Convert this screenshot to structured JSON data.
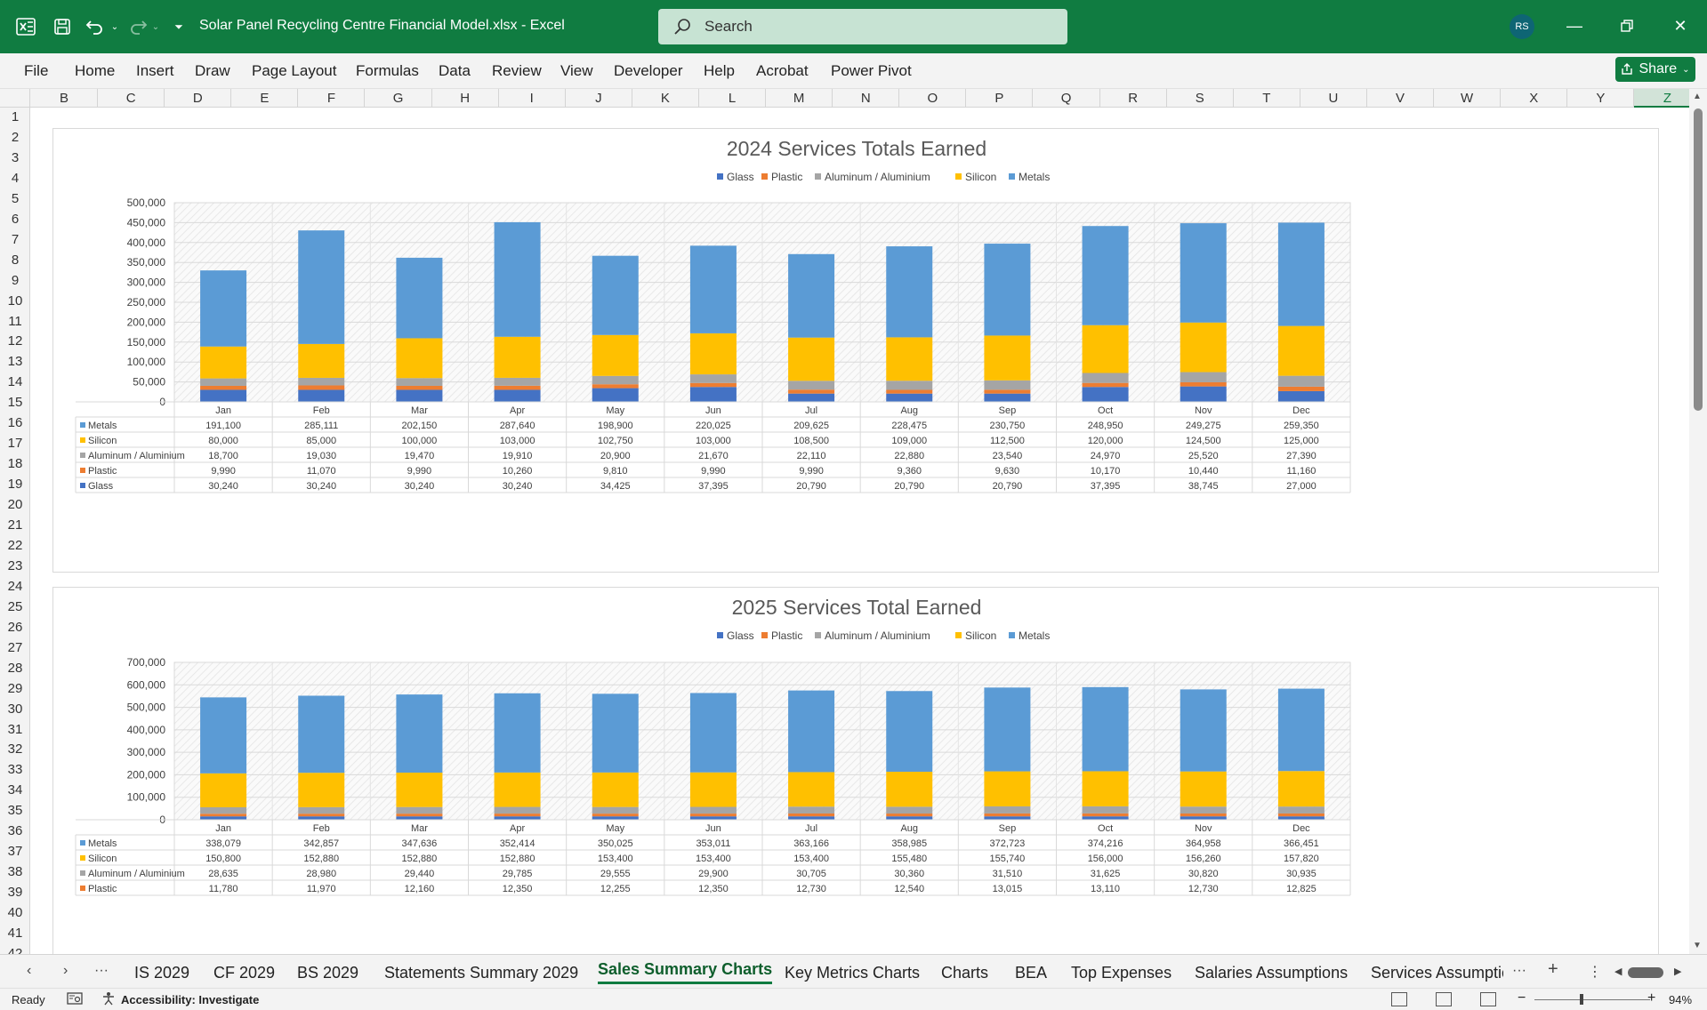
{
  "title_bar": {
    "doc_title": "Solar Panel Recycling Centre Financial Model.xlsx  -  Excel",
    "search_placeholder": "Search",
    "avatar_initials": "RS"
  },
  "ribbon": {
    "tabs": [
      "File",
      "Home",
      "Insert",
      "Draw",
      "Page Layout",
      "Formulas",
      "Data",
      "Review",
      "View",
      "Developer",
      "Help",
      "Acrobat",
      "Power Pivot"
    ],
    "share_label": "Share"
  },
  "column_headers": [
    "B",
    "C",
    "D",
    "E",
    "F",
    "G",
    "H",
    "I",
    "J",
    "K",
    "L",
    "M",
    "N",
    "O",
    "P",
    "Q",
    "R",
    "S",
    "T",
    "U",
    "V",
    "W",
    "X",
    "Y",
    "Z"
  ],
  "selected_column": "Z",
  "row_numbers": [
    "1",
    "2",
    "3",
    "4",
    "5",
    "6",
    "7",
    "8",
    "9",
    "10",
    "11",
    "12",
    "13",
    "14",
    "15",
    "16",
    "17",
    "18",
    "19",
    "20",
    "21",
    "22",
    "23",
    "24",
    "25",
    "26",
    "27",
    "28",
    "29",
    "30",
    "31",
    "32",
    "33",
    "34",
    "35",
    "36",
    "37",
    "38",
    "39",
    "40",
    "41",
    "42"
  ],
  "colors": {
    "Glass": "#4472c4",
    "Plastic": "#ed7d31",
    "Aluminum / Aluminium": "#a5a5a5",
    "Silicon": "#ffc000",
    "Metals": "#5b9bd5",
    "excel_green": "#107c41"
  },
  "chart_data": [
    {
      "type": "bar",
      "stacked": true,
      "title": "2024 Services Totals Earned",
      "legend_position": "top",
      "legend": [
        "Glass",
        "Plastic",
        "Aluminum / Aluminium",
        "Silicon",
        "Metals"
      ],
      "categories": [
        "Jan",
        "Feb",
        "Mar",
        "Apr",
        "May",
        "Jun",
        "Jul",
        "Aug",
        "Sep",
        "Oct",
        "Nov",
        "Dec"
      ],
      "ylim": [
        0,
        500000
      ],
      "ytick_labels": [
        "500,000",
        "450,000",
        "400,000",
        "350,000",
        "300,000",
        "250,000",
        "200,000",
        "150,000",
        "100,000",
        "50,000",
        "0"
      ],
      "series": [
        {
          "name": "Glass",
          "values": [
            30240,
            30240,
            30240,
            30240,
            34425,
            37395,
            20790,
            20790,
            20790,
            37395,
            38745,
            27000
          ],
          "labels": [
            "30,240",
            "30,240",
            "30,240",
            "30,240",
            "34,425",
            "37,395",
            "20,790",
            "20,790",
            "20,790",
            "37,395",
            "38,745",
            "27,000"
          ]
        },
        {
          "name": "Plastic",
          "values": [
            9990,
            11070,
            9990,
            10260,
            9810,
            9990,
            9990,
            9360,
            9630,
            10170,
            10440,
            11160
          ],
          "labels": [
            "9,990",
            "11,070",
            "9,990",
            "10,260",
            "9,810",
            "9,990",
            "9,990",
            "9,360",
            "9,630",
            "10,170",
            "10,440",
            "11,160"
          ]
        },
        {
          "name": "Aluminum / Aluminium",
          "values": [
            18700,
            19030,
            19470,
            19910,
            20900,
            21670,
            22110,
            22880,
            23540,
            24970,
            25520,
            27390
          ],
          "labels": [
            "18,700",
            "19,030",
            "19,470",
            "19,910",
            "20,900",
            "21,670",
            "22,110",
            "22,880",
            "23,540",
            "24,970",
            "25,520",
            "27,390"
          ]
        },
        {
          "name": "Silicon",
          "values": [
            80000,
            85000,
            100000,
            103000,
            102750,
            103000,
            108500,
            109000,
            112500,
            120000,
            124500,
            125000
          ],
          "labels": [
            "80,000",
            "85,000",
            "100,000",
            "103,000",
            "102,750",
            "103,000",
            "108,500",
            "109,000",
            "112,500",
            "120,000",
            "124,500",
            "125,000"
          ]
        },
        {
          "name": "Metals",
          "values": [
            191100,
            285111,
            202150,
            287640,
            198900,
            220025,
            209625,
            228475,
            230750,
            248950,
            249275,
            259350
          ],
          "labels": [
            "191,100",
            "285,111",
            "202,150",
            "287,640",
            "198,900",
            "220,025",
            "209,625",
            "228,475",
            "230,750",
            "248,950",
            "249,275",
            "259,350"
          ]
        }
      ],
      "table_order": [
        "Metals",
        "Silicon",
        "Aluminum / Aluminium",
        "Plastic",
        "Glass"
      ]
    },
    {
      "type": "bar",
      "stacked": true,
      "title": "2025 Services Total Earned",
      "legend_position": "top",
      "legend": [
        "Glass",
        "Plastic",
        "Aluminum / Aluminium",
        "Silicon",
        "Metals"
      ],
      "categories": [
        "Jan",
        "Feb",
        "Mar",
        "Apr",
        "May",
        "Jun",
        "Jul",
        "Aug",
        "Sep",
        "Oct",
        "Nov",
        "Dec"
      ],
      "ylim": [
        0,
        700000
      ],
      "ytick_labels": [
        "700,000",
        "600,000",
        "500,000",
        "400,000",
        "300,000",
        "200,000",
        "100,000",
        "0"
      ],
      "series": [
        {
          "name": "Glass",
          "values": [
            15000,
            15000,
            15000,
            15000,
            15000,
            15000,
            15000,
            15000,
            15000,
            15000,
            15000,
            15000
          ],
          "labels": []
        },
        {
          "name": "Plastic",
          "values": [
            11780,
            11970,
            12160,
            12350,
            12255,
            12350,
            12730,
            12540,
            13015,
            13110,
            12730,
            12825
          ],
          "labels": [
            "11,780",
            "11,970",
            "12,160",
            "12,350",
            "12,255",
            "12,350",
            "12,730",
            "12,540",
            "13,015",
            "13,110",
            "12,730",
            "12,825"
          ]
        },
        {
          "name": "Aluminum / Aluminium",
          "values": [
            28635,
            28980,
            29440,
            29785,
            29555,
            29900,
            30705,
            30360,
            31510,
            31625,
            30820,
            30935
          ],
          "labels": [
            "28,635",
            "28,980",
            "29,440",
            "29,785",
            "29,555",
            "29,900",
            "30,705",
            "30,360",
            "31,510",
            "31,625",
            "30,820",
            "30,935"
          ]
        },
        {
          "name": "Silicon",
          "values": [
            150800,
            152880,
            152880,
            152880,
            153400,
            153400,
            153400,
            155480,
            155740,
            156000,
            156260,
            157820
          ],
          "labels": [
            "150,800",
            "152,880",
            "152,880",
            "152,880",
            "153,400",
            "153,400",
            "153,400",
            "155,480",
            "155,740",
            "156,000",
            "156,260",
            "157,820"
          ]
        },
        {
          "name": "Metals",
          "values": [
            338079,
            342857,
            347636,
            352414,
            350025,
            353011,
            363166,
            358985,
            372723,
            374216,
            364958,
            366451
          ],
          "labels": [
            "338,079",
            "342,857",
            "347,636",
            "352,414",
            "350,025",
            "353,011",
            "363,166",
            "358,985",
            "372,723",
            "374,216",
            "364,958",
            "366,451"
          ]
        }
      ],
      "table_order": [
        "Metals",
        "Silicon",
        "Aluminum / Aluminium",
        "Plastic"
      ]
    }
  ],
  "sheet_tabs": {
    "tabs": [
      "IS 2029",
      "CF 2029",
      "BS 2029",
      "Statements Summary 2029",
      "Sales Summary Charts",
      "Key Metrics Charts",
      "Charts",
      "BEA",
      "Top Expenses",
      "Salaries Assumptions",
      "Services Assumptio"
    ],
    "active": "Sales Summary Charts"
  },
  "status_bar": {
    "ready": "Ready",
    "accessibility": "Accessibility: Investigate",
    "zoom": "94%"
  }
}
